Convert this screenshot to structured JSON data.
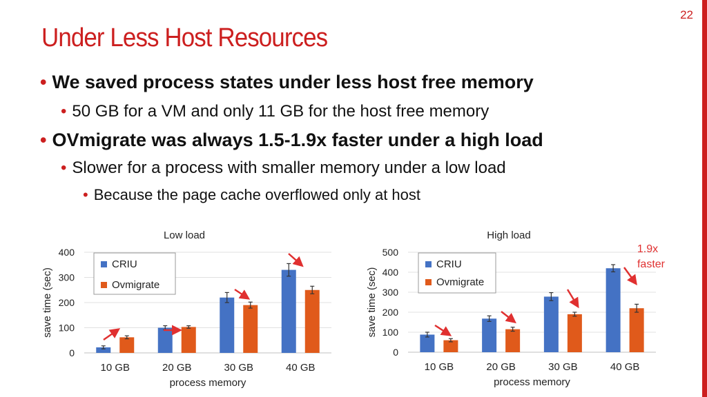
{
  "slide_number": "22",
  "title": "Under Less Host Resources",
  "bullets": [
    {
      "level": 1,
      "text": "We saved process states under less host free memory"
    },
    {
      "level": 2,
      "text": "50 GB for a VM and only 11 GB for the host free memory"
    },
    {
      "level": 1,
      "text": "OVmigrate was always 1.5-1.9x faster under a high load"
    },
    {
      "level": 2,
      "text": "Slower for a process with smaller memory under a low load"
    },
    {
      "level": 3,
      "text": "Because the page cache overflowed only at host"
    }
  ],
  "colors": {
    "accent": "#cc1f1f",
    "criu": "#4472c4",
    "ovmigrate": "#e05a1b",
    "arrow": "#e03030"
  },
  "annotation": {
    "line1": "1.9x",
    "line2": "faster"
  },
  "chart_data": [
    {
      "type": "bar",
      "title": "Low load",
      "xlabel": "process memory",
      "ylabel": "save time (sec)",
      "categories": [
        "10 GB",
        "20 GB",
        "30 GB",
        "40 GB"
      ],
      "ylim": [
        0,
        400
      ],
      "yticks": [
        0,
        100,
        200,
        300,
        400
      ],
      "legend": "top-left",
      "series": [
        {
          "name": "CRIU",
          "values": [
            22,
            100,
            220,
            330
          ],
          "errors": [
            6,
            8,
            20,
            25
          ]
        },
        {
          "name": "Ovmigrate",
          "values": [
            62,
            103,
            190,
            250
          ],
          "errors": [
            6,
            5,
            12,
            15
          ]
        }
      ]
    },
    {
      "type": "bar",
      "title": "High load",
      "xlabel": "process memory",
      "ylabel": "save time (sec)",
      "categories": [
        "10 GB",
        "20 GB",
        "30 GB",
        "40 GB"
      ],
      "ylim": [
        0,
        500
      ],
      "yticks": [
        0,
        100,
        200,
        300,
        400,
        500
      ],
      "legend": "top-left",
      "series": [
        {
          "name": "CRIU",
          "values": [
            88,
            168,
            278,
            420
          ],
          "errors": [
            12,
            14,
            20,
            18
          ]
        },
        {
          "name": "Ovmigrate",
          "values": [
            60,
            115,
            190,
            220
          ],
          "errors": [
            8,
            10,
            10,
            20
          ]
        }
      ]
    }
  ]
}
